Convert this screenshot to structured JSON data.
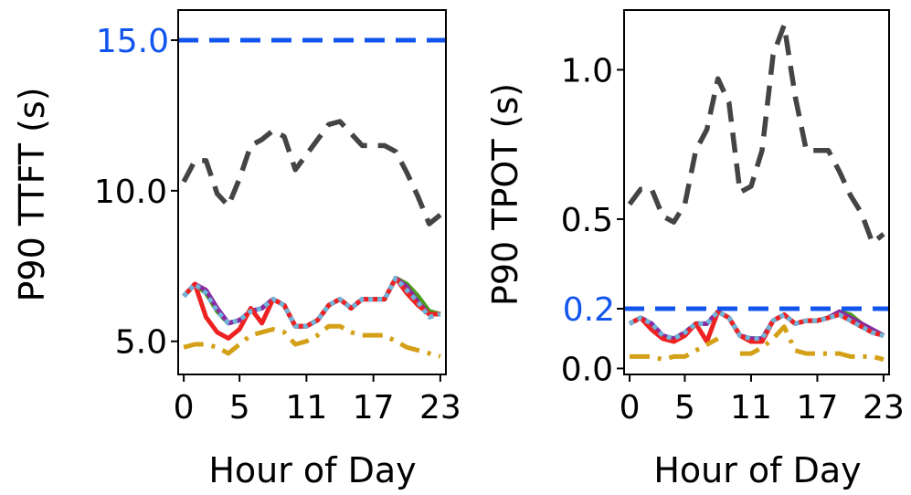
{
  "chart_data": [
    {
      "type": "line",
      "ylabel": "P90 TTFT (s)",
      "xlabel": "Hour of Day",
      "xlim": [
        -0.5,
        23.5
      ],
      "ylim": [
        3.9,
        16.0
      ],
      "x_ticks": [
        0,
        5,
        11,
        17,
        23
      ],
      "y_ticks": [
        5.0,
        10.0
      ],
      "y_tick_labels": [
        "5.0",
        "10.0"
      ],
      "slo": {
        "value": 15.0,
        "label": "15.0",
        "color": "#1155ee"
      },
      "series": [
        {
          "name": "baseline-gray",
          "color": "#444444",
          "style": "dashed",
          "x": [
            0,
            1,
            2,
            3,
            4,
            5,
            6,
            7,
            8,
            9,
            10,
            11,
            12,
            13,
            14,
            15,
            16,
            17,
            18,
            19,
            20,
            21,
            22,
            23
          ],
          "y": [
            10.3,
            11.0,
            11.0,
            9.9,
            9.5,
            10.4,
            11.5,
            11.7,
            12.0,
            11.8,
            10.7,
            11.2,
            11.7,
            12.2,
            12.3,
            11.9,
            11.5,
            11.5,
            11.5,
            11.3,
            10.6,
            9.8,
            8.9,
            9.2
          ]
        },
        {
          "name": "green",
          "color": "#4a9c1a",
          "style": "solid",
          "x": [
            0,
            1,
            2,
            3,
            4,
            5,
            6,
            7,
            8,
            9,
            10,
            11,
            12,
            13,
            14,
            15,
            16,
            17,
            18,
            19,
            20,
            21,
            22,
            23
          ],
          "y": [
            6.5,
            6.9,
            6.6,
            6.0,
            5.6,
            5.7,
            6.0,
            6.1,
            6.4,
            6.2,
            5.5,
            5.5,
            5.7,
            6.2,
            6.4,
            6.1,
            6.4,
            6.4,
            6.4,
            7.1,
            6.9,
            6.5,
            6.0,
            5.9
          ]
        },
        {
          "name": "purple",
          "color": "#8a2aa5",
          "style": "solid",
          "x": [
            0,
            1,
            2,
            3,
            4,
            5,
            6,
            7,
            8,
            9,
            10,
            11,
            12,
            13,
            14,
            15,
            16,
            17,
            18,
            19,
            20,
            21,
            22,
            23
          ],
          "y": [
            6.5,
            6.9,
            6.7,
            6.1,
            5.6,
            5.7,
            6.0,
            6.1,
            6.4,
            6.2,
            5.5,
            5.5,
            5.7,
            6.2,
            6.4,
            6.1,
            6.4,
            6.4,
            6.4,
            7.1,
            6.8,
            6.3,
            5.9,
            5.9
          ]
        },
        {
          "name": "red",
          "color": "#ee2222",
          "style": "solid",
          "x": [
            0,
            1,
            2,
            3,
            4,
            5,
            6,
            7,
            8,
            9,
            10,
            11,
            12,
            13,
            14,
            15,
            16,
            17,
            18,
            19,
            20,
            21,
            22,
            23
          ],
          "y": [
            6.5,
            6.9,
            5.8,
            5.3,
            5.1,
            5.4,
            6.1,
            5.6,
            6.4,
            6.2,
            5.5,
            5.5,
            5.7,
            6.2,
            6.4,
            6.1,
            6.4,
            6.4,
            6.4,
            7.1,
            6.6,
            6.2,
            5.9,
            5.9
          ]
        },
        {
          "name": "light-blue",
          "color": "#6fb4d9",
          "style": "dotted",
          "x": [
            0,
            1,
            2,
            3,
            4,
            5,
            6,
            7,
            8,
            9,
            10,
            11,
            12,
            13,
            14,
            15,
            16,
            17,
            18,
            19,
            20,
            21,
            22,
            23
          ],
          "y": [
            6.5,
            6.9,
            6.6,
            6.0,
            5.6,
            5.7,
            6.0,
            6.1,
            6.4,
            6.2,
            5.5,
            5.5,
            5.7,
            6.2,
            6.4,
            6.1,
            6.4,
            6.4,
            6.4,
            7.1,
            6.7,
            6.3,
            5.8,
            5.9
          ]
        },
        {
          "name": "gold",
          "color": "#d4a017",
          "style": "dashdot",
          "x": [
            0,
            1,
            2,
            3,
            4,
            5,
            6,
            7,
            8,
            9,
            10,
            11,
            12,
            13,
            14,
            15,
            16,
            17,
            18,
            19,
            20,
            21,
            22,
            23
          ],
          "y": [
            4.8,
            4.9,
            4.9,
            4.8,
            4.6,
            4.9,
            5.2,
            5.3,
            5.4,
            5.3,
            4.9,
            5.0,
            5.2,
            5.5,
            5.5,
            5.3,
            5.2,
            5.2,
            5.2,
            5.0,
            4.8,
            4.7,
            4.6,
            4.5
          ]
        }
      ]
    },
    {
      "type": "line",
      "ylabel": "P90 TPOT (s)",
      "xlabel": "Hour of Day",
      "xlim": [
        -0.5,
        23.5
      ],
      "ylim": [
        -0.02,
        1.2
      ],
      "x_ticks": [
        0,
        5,
        11,
        17,
        23
      ],
      "y_ticks": [
        0.0,
        0.5,
        1.0
      ],
      "y_tick_labels": [
        "0.0",
        "0.5",
        "1.0"
      ],
      "slo": {
        "value": 0.2,
        "label": "0.2",
        "color": "#1155ee"
      },
      "series": [
        {
          "name": "baseline-gray",
          "color": "#444444",
          "style": "dashed",
          "x": [
            0,
            1,
            2,
            3,
            4,
            5,
            6,
            7,
            8,
            9,
            10,
            11,
            12,
            13,
            14,
            15,
            16,
            17,
            18,
            19,
            20,
            21,
            22,
            23
          ],
          "y": [
            0.55,
            0.6,
            0.6,
            0.51,
            0.49,
            0.55,
            0.73,
            0.8,
            0.97,
            0.89,
            0.59,
            0.61,
            0.73,
            1.05,
            1.15,
            0.91,
            0.73,
            0.73,
            0.73,
            0.66,
            0.58,
            0.52,
            0.42,
            0.45
          ]
        },
        {
          "name": "green",
          "color": "#4a9c1a",
          "style": "solid",
          "x": [
            0,
            1,
            2,
            3,
            4,
            5,
            6,
            7,
            8,
            9,
            10,
            11,
            12,
            13,
            14,
            15,
            16,
            17,
            18,
            19,
            20,
            21,
            22,
            23
          ],
          "y": [
            0.15,
            0.17,
            0.15,
            0.11,
            0.1,
            0.12,
            0.15,
            0.15,
            0.19,
            0.17,
            0.11,
            0.1,
            0.1,
            0.16,
            0.18,
            0.15,
            0.16,
            0.16,
            0.17,
            0.19,
            0.18,
            0.15,
            0.13,
            0.11
          ]
        },
        {
          "name": "purple",
          "color": "#8a2aa5",
          "style": "solid",
          "x": [
            0,
            1,
            2,
            3,
            4,
            5,
            6,
            7,
            8,
            9,
            10,
            11,
            12,
            13,
            14,
            15,
            16,
            17,
            18,
            19,
            20,
            21,
            22,
            23
          ],
          "y": [
            0.15,
            0.17,
            0.15,
            0.11,
            0.1,
            0.12,
            0.15,
            0.15,
            0.19,
            0.17,
            0.11,
            0.1,
            0.1,
            0.16,
            0.18,
            0.15,
            0.16,
            0.16,
            0.17,
            0.19,
            0.17,
            0.15,
            0.13,
            0.11
          ]
        },
        {
          "name": "red",
          "color": "#ee2222",
          "style": "solid",
          "x": [
            0,
            1,
            2,
            3,
            4,
            5,
            6,
            7,
            8,
            9,
            10,
            11,
            12,
            13,
            14,
            15,
            16,
            17,
            18,
            19,
            20,
            21,
            22,
            23
          ],
          "y": [
            0.15,
            0.17,
            0.13,
            0.1,
            0.09,
            0.11,
            0.15,
            0.09,
            0.19,
            0.17,
            0.11,
            0.09,
            0.09,
            0.16,
            0.18,
            0.15,
            0.16,
            0.16,
            0.17,
            0.18,
            0.16,
            0.14,
            0.12,
            0.11
          ]
        },
        {
          "name": "light-blue",
          "color": "#6fb4d9",
          "style": "dotted",
          "x": [
            0,
            1,
            2,
            3,
            4,
            5,
            6,
            7,
            8,
            9,
            10,
            11,
            12,
            13,
            14,
            15,
            16,
            17,
            18,
            19,
            20,
            21,
            22,
            23
          ],
          "y": [
            0.15,
            0.17,
            0.15,
            0.11,
            0.1,
            0.12,
            0.15,
            0.15,
            0.19,
            0.17,
            0.11,
            0.1,
            0.1,
            0.16,
            0.18,
            0.15,
            0.16,
            0.16,
            0.17,
            0.18,
            0.16,
            0.14,
            0.12,
            0.11
          ]
        },
        {
          "name": "gold",
          "color": "#d4a017",
          "style": "dashdot",
          "x": [
            0,
            1,
            2,
            3,
            4,
            5,
            6,
            7,
            8,
            9,
            10,
            11,
            12,
            13,
            14,
            15,
            16,
            17,
            18,
            19,
            20,
            21,
            22,
            23
          ],
          "y": [
            0.04,
            0.04,
            0.04,
            0.03,
            0.04,
            0.04,
            0.06,
            0.08,
            0.1,
            null,
            0.05,
            0.05,
            0.07,
            0.1,
            0.14,
            0.06,
            0.05,
            0.05,
            0.05,
            0.05,
            0.04,
            0.04,
            0.04,
            0.03
          ]
        }
      ]
    }
  ]
}
